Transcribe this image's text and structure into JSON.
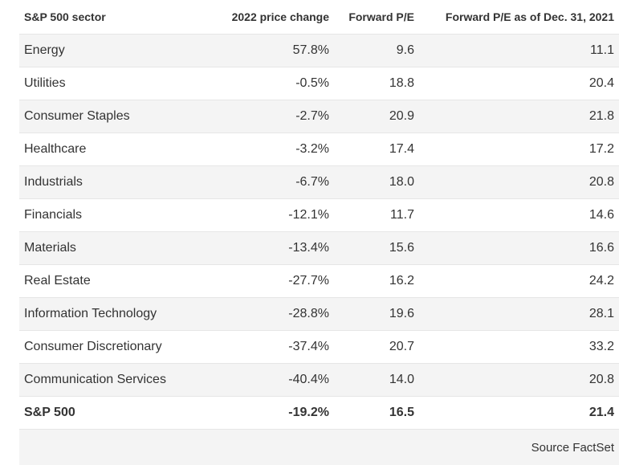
{
  "chart_data": {
    "type": "table",
    "columns": [
      "S&P 500 sector",
      "2022 price change",
      "Forward P/E",
      "Forward P/E as of Dec. 31, 2021"
    ],
    "rows": [
      [
        "Energy",
        "57.8%",
        "9.6",
        "11.1"
      ],
      [
        "Utilities",
        "-0.5%",
        "18.8",
        "20.4"
      ],
      [
        "Consumer Staples",
        "-2.7%",
        "20.9",
        "21.8"
      ],
      [
        "Healthcare",
        "-3.2%",
        "17.4",
        "17.2"
      ],
      [
        "Industrials",
        "-6.7%",
        "18.0",
        "20.8"
      ],
      [
        "Financials",
        "-12.1%",
        "11.7",
        "14.6"
      ],
      [
        "Materials",
        "-13.4%",
        "15.6",
        "16.6"
      ],
      [
        "Real Estate",
        "-27.7%",
        "16.2",
        "24.2"
      ],
      [
        "Information Technology",
        "-28.8%",
        "19.6",
        "28.1"
      ],
      [
        "Consumer Discretionary",
        "-37.4%",
        "20.7",
        "33.2"
      ],
      [
        "Communication Services",
        "-40.4%",
        "14.0",
        "20.8"
      ]
    ],
    "total_row": [
      "S&P 500",
      "-19.2%",
      "16.5",
      "21.4"
    ],
    "source": "Source FactSet"
  }
}
